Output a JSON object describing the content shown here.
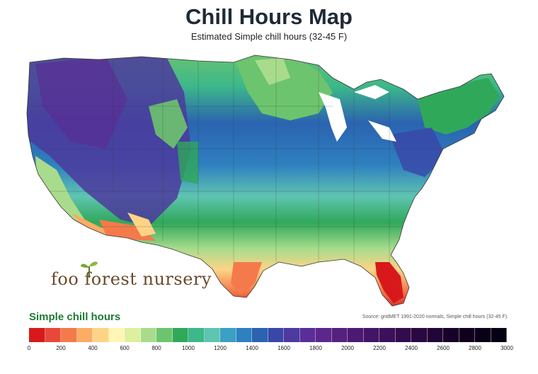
{
  "title": "Chill Hours Map",
  "subtitle": "Estimated Simple chill hours (32-45 F)",
  "logo_text": "foo forest nursery",
  "legend": {
    "title": "Simple chill hours",
    "source": "Source: gridMET 1991-2020 normals, Simple chill hours (32-45 F).",
    "ticks": [
      "0",
      "200",
      "400",
      "600",
      "800",
      "1000",
      "1200",
      "1400",
      "1600",
      "1800",
      "2000",
      "2200",
      "2400",
      "2600",
      "2800",
      "3000"
    ],
    "min": 0,
    "max": 3000,
    "colors": [
      "#d7191c",
      "#e8483a",
      "#f47a4b",
      "#fbac63",
      "#fdd486",
      "#fff5b4",
      "#dcf0a0",
      "#a8dc8c",
      "#6dc46e",
      "#30a85a",
      "#3cb88a",
      "#5fc4b0",
      "#3ba0c4",
      "#2e80bf",
      "#2b63b0",
      "#3a46a8",
      "#4c3a9e",
      "#5a2e96",
      "#5c268c",
      "#55207e",
      "#4c1a72",
      "#441566",
      "#3c105a",
      "#330c4e",
      "#2a0842",
      "#210536",
      "#18022a",
      "#10001e",
      "#0a0018",
      "#050012"
    ]
  },
  "colors": {
    "title": "#1f2a37",
    "legend_title": "#1e7a34",
    "logo": "#6a4a2a"
  }
}
